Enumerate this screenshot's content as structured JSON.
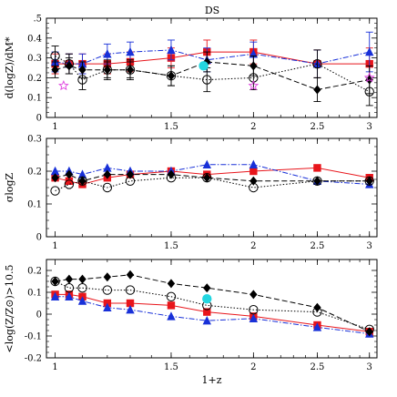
{
  "figure_title": "DS",
  "chart_data": [
    {
      "type": "scatter",
      "xscale": "log",
      "xlim": [
        0.97,
        3.08
      ],
      "ylim": [
        0,
        0.5
      ],
      "yticks": [
        0,
        0.1,
        0.2,
        0.3,
        0.4,
        0.5
      ],
      "ytick_labels": [
        "0",
        "0.1",
        "0.2",
        "0.3",
        "0.4",
        ".5"
      ],
      "xticks": [
        1,
        1.5,
        2,
        2.5,
        3
      ],
      "xtick_labels": [
        "1",
        "1.5",
        "2",
        "2.5",
        "3"
      ],
      "ylabel": "d(logZ)/dM*",
      "xlabel": "",
      "grid": false,
      "series": [
        {
          "marker": "square",
          "style": "solid",
          "color": "#e8151b",
          "x": [
            1.0,
            1.05,
            1.1,
            1.2,
            1.3,
            1.5,
            1.7,
            2.0,
            2.5,
            3.0
          ],
          "y": [
            0.27,
            0.27,
            0.27,
            0.27,
            0.28,
            0.3,
            0.33,
            0.33,
            0.27,
            0.27
          ],
          "err": [
            0.05,
            0.05,
            0.05,
            0.05,
            0.05,
            0.05,
            0.06,
            0.06,
            0.07,
            0.08
          ]
        },
        {
          "marker": "triangle",
          "style": "dashdot",
          "color": "#1830d8",
          "x": [
            1.0,
            1.05,
            1.1,
            1.2,
            1.3,
            1.5,
            1.7,
            2.0,
            2.5,
            3.0
          ],
          "y": [
            0.28,
            0.27,
            0.27,
            0.32,
            0.33,
            0.34,
            0.29,
            0.32,
            0.27,
            0.33
          ],
          "err": [
            0.05,
            0.05,
            0.05,
            0.05,
            0.05,
            0.05,
            0.06,
            0.06,
            0.07,
            0.1
          ]
        },
        {
          "marker": "diamond",
          "style": "dashed",
          "color": "#000000",
          "x": [
            1.0,
            1.05,
            1.1,
            1.2,
            1.3,
            1.5,
            1.7,
            2.0,
            2.5,
            3.0
          ],
          "y": [
            0.24,
            0.26,
            0.24,
            0.24,
            0.24,
            0.21,
            0.28,
            0.26,
            0.14,
            0.19
          ],
          "err": [
            0.04,
            0.04,
            0.04,
            0.04,
            0.04,
            0.05,
            0.05,
            0.05,
            0.06,
            0.07
          ]
        },
        {
          "marker": "circle-open",
          "style": "dotted",
          "color": "#000000",
          "x": [
            1.0,
            1.05,
            1.1,
            1.2,
            1.3,
            1.5,
            1.7,
            2.0,
            2.5,
            3.0
          ],
          "y": [
            0.31,
            0.27,
            0.19,
            0.24,
            0.24,
            0.21,
            0.19,
            0.2,
            0.27,
            0.13
          ],
          "err": [
            0.05,
            0.05,
            0.05,
            0.05,
            0.05,
            0.05,
            0.06,
            0.06,
            0.07,
            0.07
          ]
        },
        {
          "marker": "circle-cyan",
          "style": "none",
          "color": "#23d6e0",
          "x": [
            1.68
          ],
          "y": [
            0.26
          ],
          "err": [
            0
          ]
        },
        {
          "marker": "star-open",
          "style": "none",
          "color": "#e040e0",
          "x": [
            1.03,
            2.0,
            3.0
          ],
          "y": [
            0.16,
            0.16,
            0.2
          ],
          "err": [
            0,
            0,
            0
          ]
        }
      ]
    },
    {
      "type": "scatter",
      "xscale": "log",
      "xlim": [
        0.97,
        3.08
      ],
      "ylim": [
        0,
        0.3
      ],
      "yticks": [
        0,
        0.1,
        0.2,
        0.3
      ],
      "ytick_labels": [
        "0",
        "0.1",
        "0.2",
        "0.3"
      ],
      "xticks": [
        1,
        1.5,
        2,
        2.5,
        3
      ],
      "xtick_labels": [
        "1",
        "1.5",
        "2",
        "2.5",
        "3"
      ],
      "ylabel": "σlogZ",
      "xlabel": "",
      "grid": false,
      "series": [
        {
          "marker": "square",
          "style": "solid",
          "color": "#e8151b",
          "x": [
            1.0,
            1.05,
            1.1,
            1.2,
            1.3,
            1.5,
            1.7,
            2.0,
            2.5,
            3.0
          ],
          "y": [
            0.18,
            0.17,
            0.16,
            0.18,
            0.19,
            0.2,
            0.19,
            0.2,
            0.21,
            0.18
          ]
        },
        {
          "marker": "triangle",
          "style": "dashdot",
          "color": "#1830d8",
          "x": [
            1.0,
            1.05,
            1.1,
            1.2,
            1.3,
            1.5,
            1.7,
            2.0,
            2.5,
            3.0
          ],
          "y": [
            0.2,
            0.2,
            0.19,
            0.21,
            0.2,
            0.2,
            0.22,
            0.22,
            0.17,
            0.16
          ]
        },
        {
          "marker": "diamond",
          "style": "dashed",
          "color": "#000000",
          "x": [
            1.0,
            1.05,
            1.1,
            1.2,
            1.3,
            1.5,
            1.7,
            2.0,
            2.5,
            3.0
          ],
          "y": [
            0.18,
            0.19,
            0.17,
            0.19,
            0.19,
            0.19,
            0.18,
            0.17,
            0.17,
            0.17
          ]
        },
        {
          "marker": "circle-open",
          "style": "dotted",
          "color": "#000000",
          "x": [
            1.0,
            1.05,
            1.1,
            1.2,
            1.3,
            1.5,
            1.7,
            2.0,
            2.5,
            3.0
          ],
          "y": [
            0.14,
            0.16,
            0.17,
            0.15,
            0.17,
            0.18,
            0.18,
            0.15,
            0.17,
            0.17
          ]
        }
      ]
    },
    {
      "type": "scatter",
      "xscale": "log",
      "xlim": [
        0.97,
        3.08
      ],
      "ylim": [
        -0.2,
        0.25
      ],
      "yticks": [
        -0.2,
        -0.1,
        0,
        0.1,
        0.2
      ],
      "ytick_labels": [
        "-0.2",
        "-0.1",
        "0",
        "0.1",
        "0.2"
      ],
      "xticks": [
        1,
        1.5,
        2,
        2.5,
        3
      ],
      "xtick_labels": [
        "1",
        "1.5",
        "2",
        "2.5",
        "3"
      ],
      "ylabel": "<log(Z/Z⊙)>10.5",
      "xlabel": "1+z",
      "grid": false,
      "series": [
        {
          "marker": "square",
          "style": "solid",
          "color": "#e8151b",
          "x": [
            1.0,
            1.05,
            1.1,
            1.2,
            1.3,
            1.5,
            1.7,
            2.0,
            2.5,
            3.0
          ],
          "y": [
            0.09,
            0.09,
            0.08,
            0.05,
            0.05,
            0.04,
            0.01,
            -0.01,
            -0.05,
            -0.08
          ]
        },
        {
          "marker": "triangle",
          "style": "dashdot",
          "color": "#1830d8",
          "x": [
            1.0,
            1.05,
            1.1,
            1.2,
            1.3,
            1.5,
            1.7,
            2.0,
            2.5,
            3.0
          ],
          "y": [
            0.08,
            0.08,
            0.06,
            0.03,
            0.02,
            -0.01,
            -0.03,
            -0.02,
            -0.06,
            -0.09
          ]
        },
        {
          "marker": "diamond",
          "style": "dashed",
          "color": "#000000",
          "x": [
            1.0,
            1.05,
            1.1,
            1.2,
            1.3,
            1.5,
            1.7,
            2.0,
            2.5,
            3.0
          ],
          "y": [
            0.15,
            0.16,
            0.16,
            0.17,
            0.18,
            0.14,
            0.12,
            0.09,
            0.03,
            -0.08
          ]
        },
        {
          "marker": "circle-open",
          "style": "dotted",
          "color": "#000000",
          "x": [
            1.0,
            1.05,
            1.1,
            1.2,
            1.3,
            1.5,
            1.7,
            2.0,
            2.5,
            3.0
          ],
          "y": [
            0.15,
            0.12,
            0.12,
            0.11,
            0.11,
            0.08,
            0.04,
            0.02,
            0.01,
            -0.07
          ]
        },
        {
          "marker": "circle-cyan",
          "style": "none",
          "color": "#23d6e0",
          "x": [
            1.7
          ],
          "y": [
            0.07
          ]
        }
      ]
    }
  ]
}
